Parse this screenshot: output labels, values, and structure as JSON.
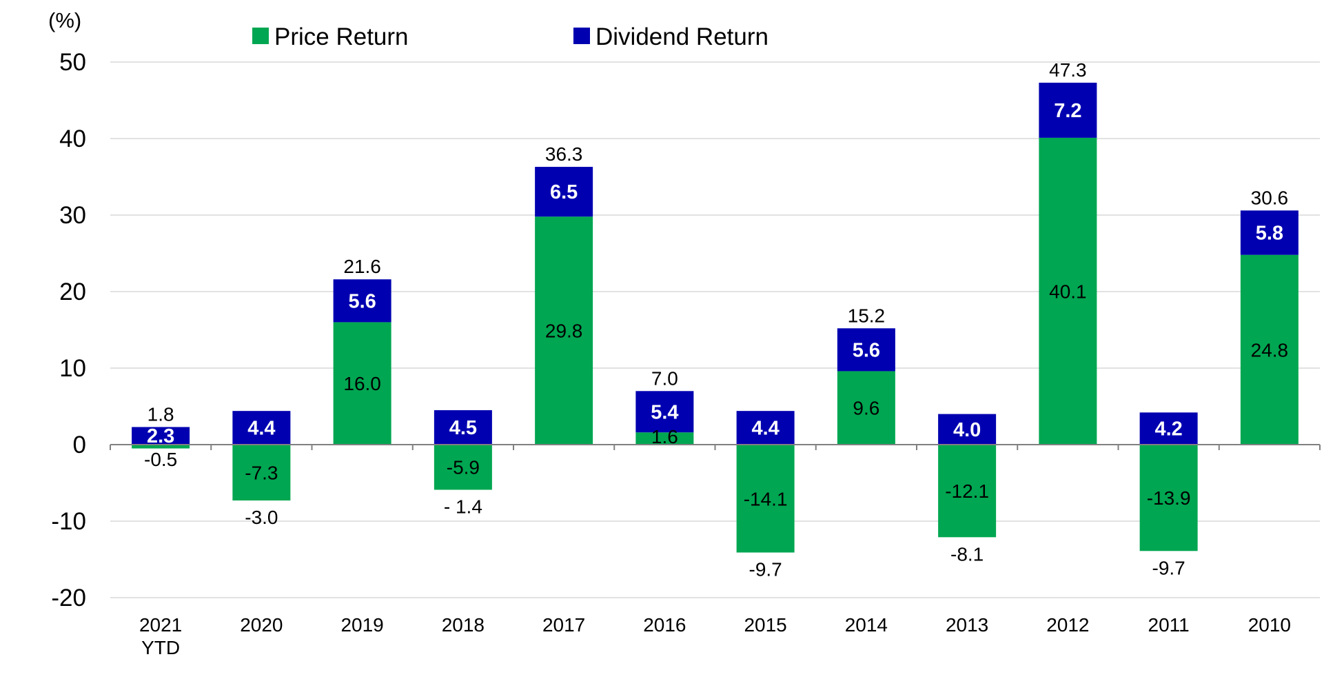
{
  "chart_data": {
    "type": "bar",
    "stacked": true,
    "unit_label": "(%)",
    "categories": [
      "2021\nYTD",
      "2020",
      "2019",
      "2018",
      "2017",
      "2016",
      "2015",
      "2014",
      "2013",
      "2012",
      "2011",
      "2010"
    ],
    "series": [
      {
        "name": "Price Return",
        "color": "#00A651",
        "values": [
          -0.5,
          -7.3,
          16.0,
          -5.9,
          29.8,
          1.6,
          -14.1,
          9.6,
          -12.1,
          40.1,
          -13.9,
          24.8
        ],
        "labels": [
          "-0.5",
          "-7.3",
          "16.0",
          "-5.9",
          "29.8",
          "1.6",
          "-14.1",
          "9.6",
          "-12.1",
          "40.1",
          "-13.9",
          "24.8"
        ]
      },
      {
        "name": "Dividend Return",
        "color": "#0000B0",
        "values": [
          2.3,
          4.4,
          5.6,
          4.5,
          6.5,
          5.4,
          4.4,
          5.6,
          4.0,
          7.2,
          4.2,
          5.8
        ],
        "labels": [
          "2.3",
          "4.4",
          "5.6",
          "4.5",
          "6.5",
          "5.4",
          "4.4",
          "5.6",
          "4.0",
          "7.2",
          "4.2",
          "5.8"
        ]
      }
    ],
    "totals": [
      1.8,
      -3.0,
      21.6,
      -1.4,
      36.3,
      7.0,
      -9.7,
      15.2,
      -8.1,
      47.3,
      -9.7,
      30.6
    ],
    "total_labels": [
      "1.8",
      "-3.0",
      "21.6",
      "- 1.4",
      "36.3",
      "7.0",
      "-9.7",
      "15.2",
      "-8.1",
      "47.3",
      "-9.7",
      "30.6"
    ],
    "ylim": [
      -20,
      50
    ],
    "yticks": [
      -20,
      -10,
      0,
      10,
      20,
      30,
      40,
      50
    ],
    "grid": true,
    "legend_position": "top"
  }
}
